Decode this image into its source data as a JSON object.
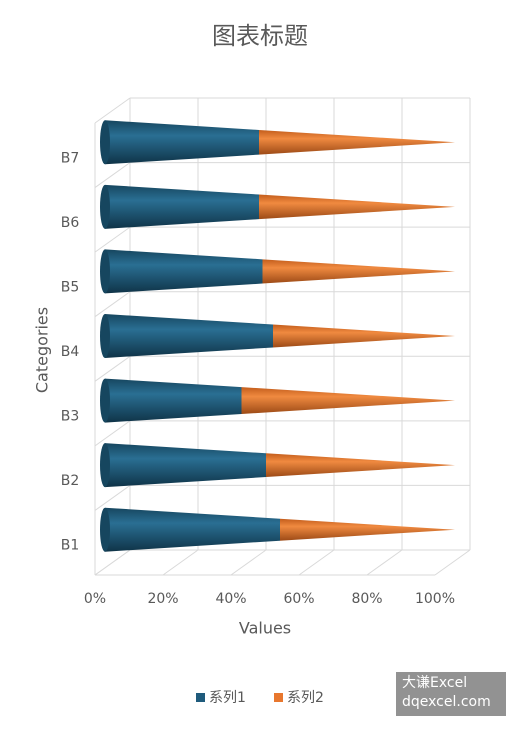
{
  "chart_data": {
    "type": "cone-bar-100",
    "title": "图表标题",
    "x_label": "Values",
    "y_label": "Categories",
    "categories": [
      "B1",
      "B2",
      "B3",
      "B4",
      "B5",
      "B6",
      "B7"
    ],
    "series": [
      {
        "name": "系列1",
        "color": "#1f5b7c",
        "values": [
          50,
          46,
          39,
          48,
          45,
          44,
          44
        ]
      },
      {
        "name": "系列2",
        "color": "#e8772e",
        "values": [
          50,
          54,
          61,
          52,
          55,
          56,
          56
        ]
      }
    ],
    "xlim": [
      0,
      100
    ],
    "xticks": [
      {
        "value": 0,
        "label": "0%"
      },
      {
        "value": 20,
        "label": "20%"
      },
      {
        "value": 40,
        "label": "40%"
      },
      {
        "value": 60,
        "label": "60%"
      },
      {
        "value": 80,
        "label": "80%"
      },
      {
        "value": 100,
        "label": "100%"
      }
    ],
    "grid": true,
    "legend": "bottom",
    "watermark": [
      "大谦Excel",
      "dqexcel.com"
    ]
  }
}
